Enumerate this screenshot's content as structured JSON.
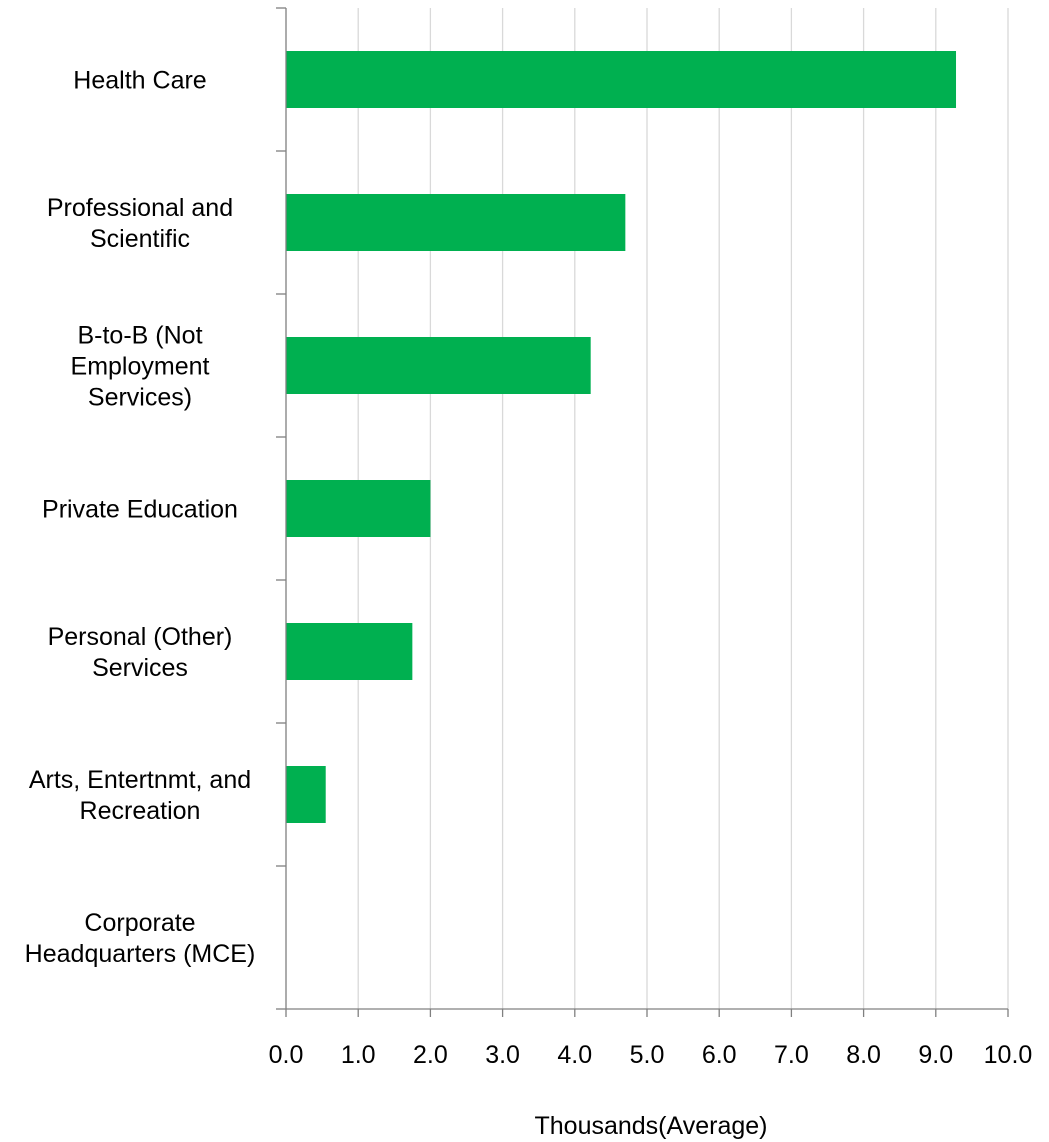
{
  "chart_data": {
    "type": "bar",
    "orientation": "horizontal",
    "categories": [
      "Health Care",
      "Professional and Scientific",
      "B-to-B (Not Employment Services)",
      "Private Education",
      "Personal (Other) Services",
      "Arts, Entertnmt, and Recreation",
      "Corporate Headquarters (MCE)"
    ],
    "category_lines": [
      [
        "Health Care"
      ],
      [
        "Professional and",
        "Scientific"
      ],
      [
        "B-to-B (Not",
        "Employment",
        "Services)"
      ],
      [
        "Private Education"
      ],
      [
        "Personal (Other)",
        "Services"
      ],
      [
        "Arts, Entertnmt, and",
        "Recreation"
      ],
      [
        "Corporate",
        "Headquarters (MCE)"
      ]
    ],
    "values": [
      9.28,
      4.7,
      4.22,
      2.0,
      1.75,
      0.55,
      0
    ],
    "xlabel": "Thousands(Average)",
    "ylabel": "",
    "xlim": [
      0,
      10
    ],
    "xticks": [
      "0.0",
      "1.0",
      "2.0",
      "3.0",
      "4.0",
      "5.0",
      "6.0",
      "7.0",
      "8.0",
      "9.0",
      "10.0"
    ],
    "grid": "vertical",
    "legend": "none",
    "bar_color": "#00b050",
    "grid_color": "#d9d9d9",
    "axis_color": "#808080"
  }
}
